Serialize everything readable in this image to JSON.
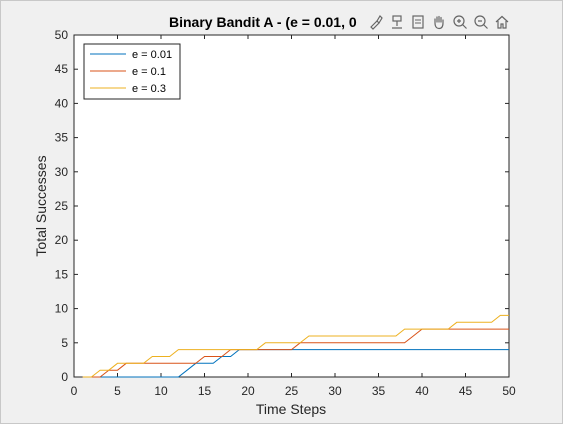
{
  "title": "Binary Bandit A - (e = 0.01, 0",
  "toolbar": {
    "icons": [
      "brush-icon",
      "data-tips-icon",
      "edit-icon",
      "pan-icon",
      "zoom-in-icon",
      "zoom-out-icon",
      "home-icon"
    ]
  },
  "chart_data": {
    "type": "line",
    "title": "Binary Bandit A - (e = 0.01, 0",
    "xlabel": "Time Steps",
    "ylabel": "Total Successes",
    "xlim": [
      0,
      50
    ],
    "ylim": [
      0,
      50
    ],
    "xticks": [
      "0",
      "5",
      "10",
      "15",
      "20",
      "25",
      "30",
      "35",
      "40",
      "45",
      "50"
    ],
    "yticks": [
      "0",
      "5",
      "10",
      "15",
      "20",
      "25",
      "30",
      "35",
      "40",
      "45",
      "50"
    ],
    "grid": false,
    "legend_position": "top-left",
    "series": [
      {
        "name": "e = 0.01",
        "color": "#0072BD",
        "x": [
          1,
          2,
          3,
          4,
          5,
          6,
          7,
          8,
          9,
          10,
          11,
          12,
          13,
          14,
          15,
          16,
          17,
          18,
          19,
          20,
          21,
          22,
          23,
          24,
          25,
          26,
          27,
          28,
          29,
          30,
          31,
          32,
          33,
          34,
          35,
          36,
          37,
          38,
          39,
          40,
          41,
          42,
          43,
          44,
          45,
          46,
          47,
          48,
          49,
          50
        ],
        "y": [
          0,
          0,
          0,
          0,
          0,
          0,
          0,
          0,
          0,
          0,
          0,
          0,
          1,
          2,
          2,
          2,
          3,
          3,
          4,
          4,
          4,
          4,
          4,
          4,
          4,
          4,
          4,
          4,
          4,
          4,
          4,
          4,
          4,
          4,
          4,
          4,
          4,
          4,
          4,
          4,
          4,
          4,
          4,
          4,
          4,
          4,
          4,
          4,
          4,
          4
        ]
      },
      {
        "name": "e = 0.1",
        "color": "#D95319",
        "x": [
          1,
          2,
          3,
          4,
          5,
          6,
          7,
          8,
          9,
          10,
          11,
          12,
          13,
          14,
          15,
          16,
          17,
          18,
          19,
          20,
          21,
          22,
          23,
          24,
          25,
          26,
          27,
          28,
          29,
          30,
          31,
          32,
          33,
          34,
          35,
          36,
          37,
          38,
          39,
          40,
          41,
          42,
          43,
          44,
          45,
          46,
          47,
          48,
          49,
          50
        ],
        "y": [
          0,
          0,
          0,
          1,
          1,
          2,
          2,
          2,
          2,
          2,
          2,
          2,
          2,
          2,
          3,
          3,
          3,
          4,
          4,
          4,
          4,
          4,
          4,
          4,
          4,
          5,
          5,
          5,
          5,
          5,
          5,
          5,
          5,
          5,
          5,
          5,
          5,
          5,
          6,
          7,
          7,
          7,
          7,
          7,
          7,
          7,
          7,
          7,
          7,
          7
        ]
      },
      {
        "name": "e = 0.3",
        "color": "#EDB120",
        "x": [
          1,
          2,
          3,
          4,
          5,
          6,
          7,
          8,
          9,
          10,
          11,
          12,
          13,
          14,
          15,
          16,
          17,
          18,
          19,
          20,
          21,
          22,
          23,
          24,
          25,
          26,
          27,
          28,
          29,
          30,
          31,
          32,
          33,
          34,
          35,
          36,
          37,
          38,
          39,
          40,
          41,
          42,
          43,
          44,
          45,
          46,
          47,
          48,
          49,
          50
        ],
        "y": [
          0,
          0,
          1,
          1,
          2,
          2,
          2,
          2,
          3,
          3,
          3,
          4,
          4,
          4,
          4,
          4,
          4,
          4,
          4,
          4,
          4,
          5,
          5,
          5,
          5,
          5,
          6,
          6,
          6,
          6,
          6,
          6,
          6,
          6,
          6,
          6,
          6,
          7,
          7,
          7,
          7,
          7,
          7,
          8,
          8,
          8,
          8,
          8,
          9,
          9
        ]
      }
    ]
  }
}
